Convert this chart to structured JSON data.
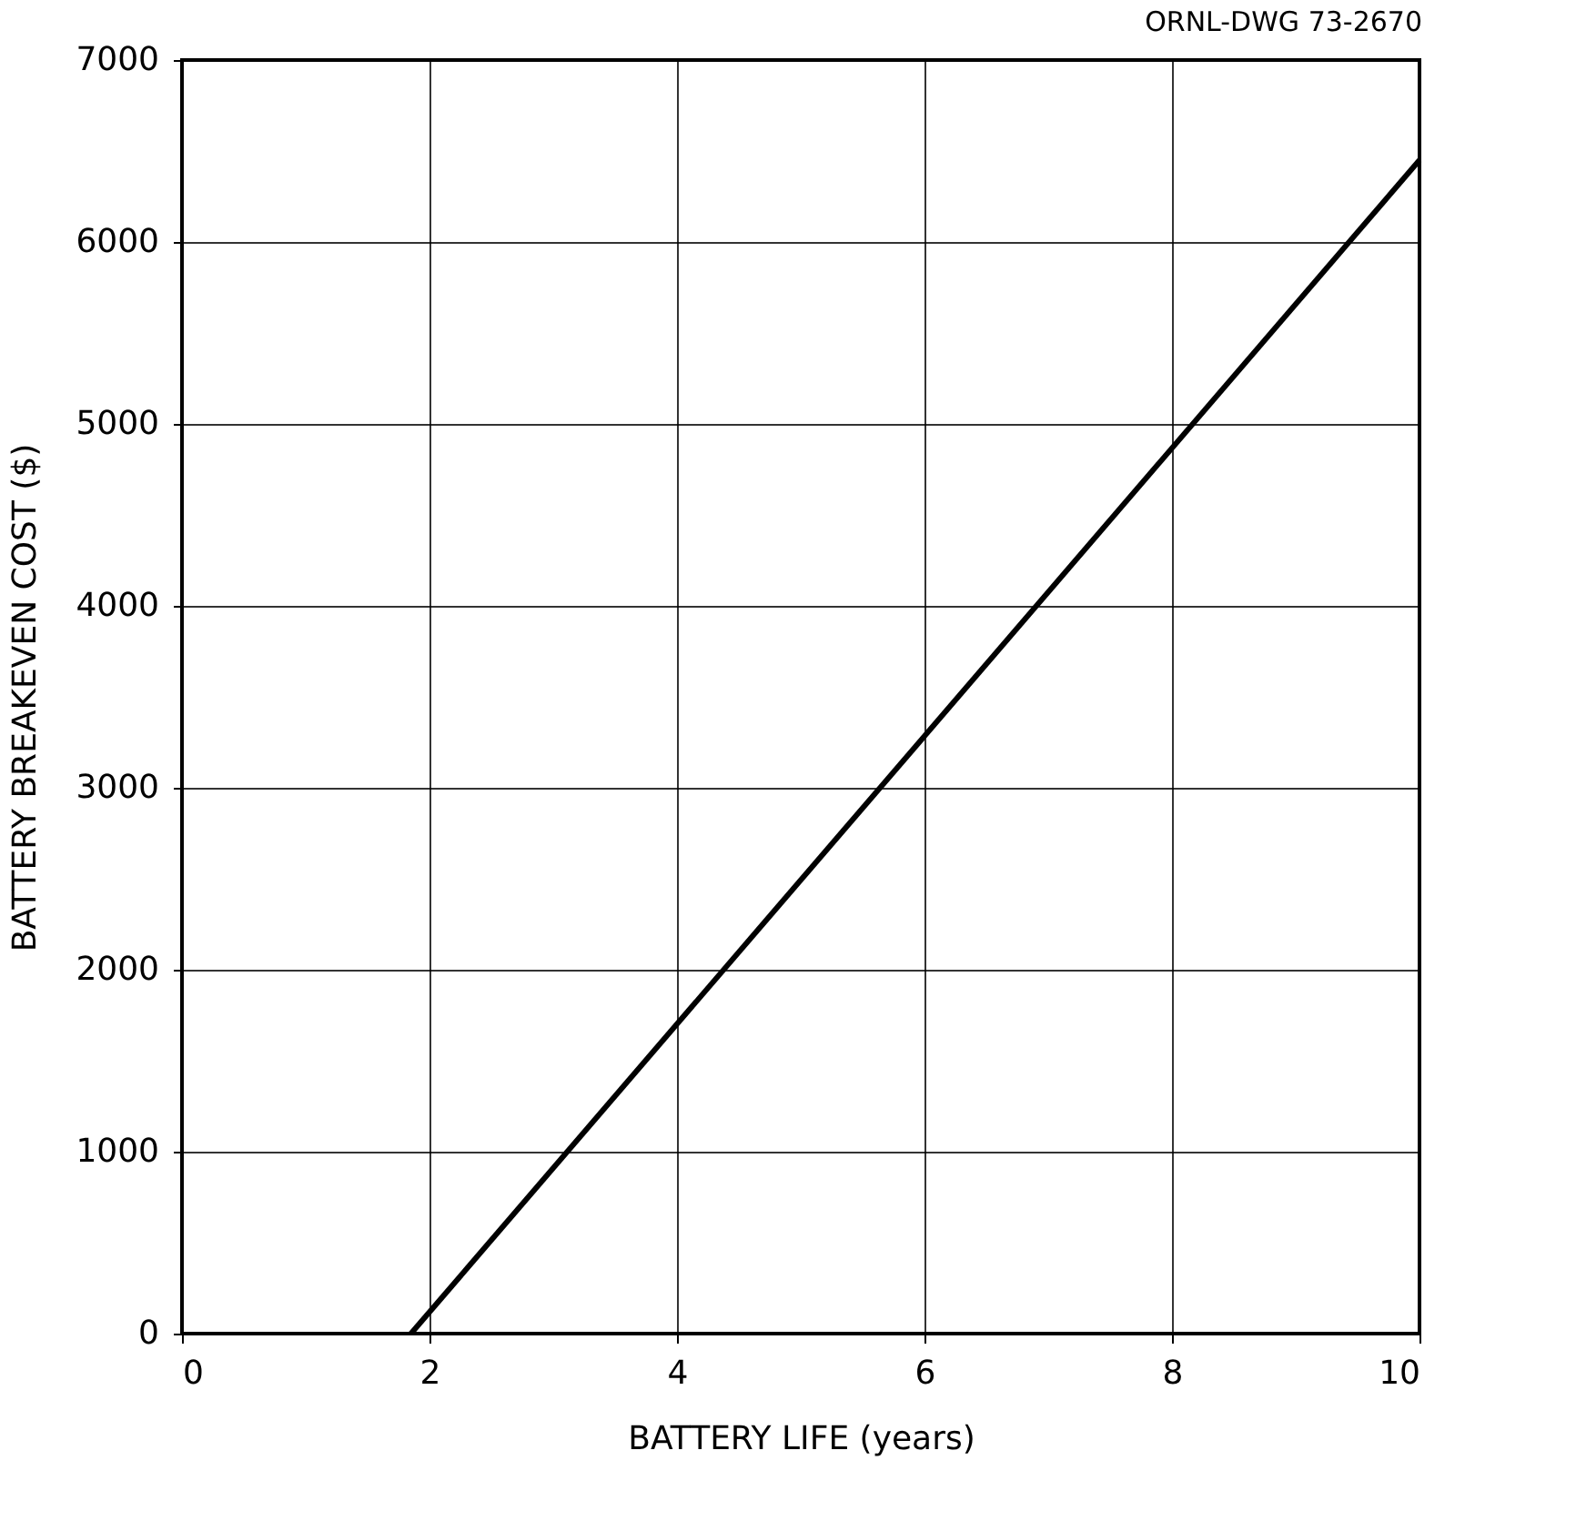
{
  "chart_data": {
    "type": "line",
    "xlabel": "BATTERY LIFE (years)",
    "ylabel": "BATTERY BREAKEVEN COST ($)",
    "annotations": [
      "ORNL-DWG 73-2670"
    ],
    "series": [
      {
        "color": "#000000",
        "x": [
          1.85,
          10
        ],
        "values": [
          0,
          6450
        ]
      }
    ],
    "xlim": [
      0,
      10
    ],
    "xticks": [
      0,
      2,
      4,
      6,
      8,
      10
    ],
    "ylim": [
      0,
      7000
    ],
    "yticks": [
      0,
      1000,
      2000,
      3000,
      4000,
      5000,
      6000,
      7000
    ],
    "grid": true,
    "marker": "none",
    "line_style": "solid"
  }
}
